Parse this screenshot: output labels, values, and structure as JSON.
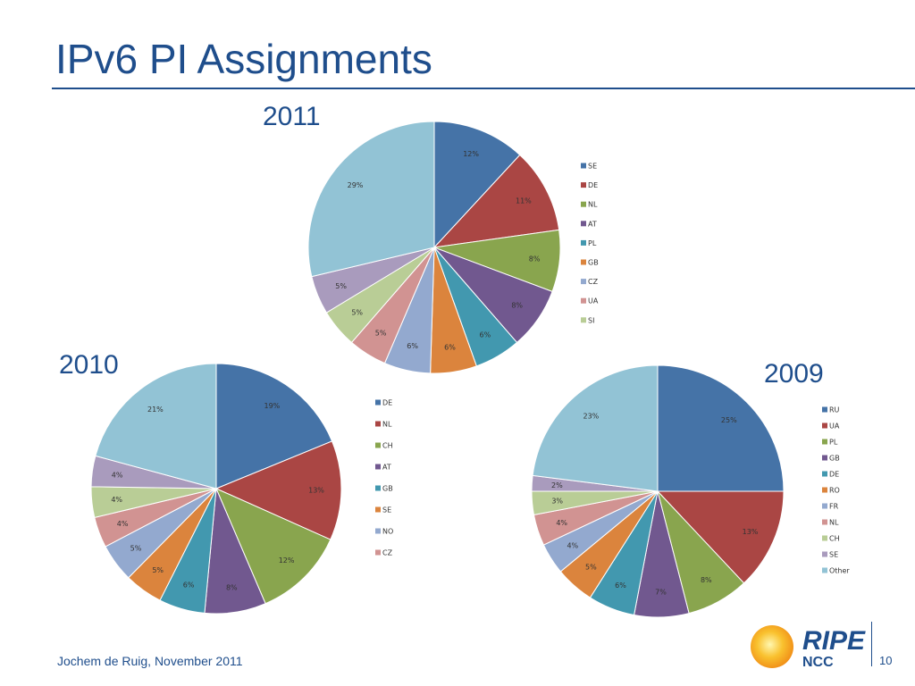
{
  "slide": {
    "title": "IPv6 PI Assignments",
    "footer": "Jochem de Ruig, November 2011",
    "page_number": "10",
    "logo": {
      "ripe": "RIPE",
      "ncc": "NCC"
    }
  },
  "colors": [
    "#4573a7",
    "#aa4644",
    "#89a54e",
    "#71588f",
    "#4298af",
    "#db843d",
    "#93a9cf",
    "#d19392",
    "#b9cd96",
    "#a99bbd",
    "#92c3d5"
  ],
  "chart_data": [
    {
      "type": "pie",
      "title": "2011",
      "categories": [
        "SE",
        "DE",
        "NL",
        "AT",
        "PL",
        "GB",
        "CZ",
        "UA",
        "SI",
        "",
        ""
      ],
      "values": [
        12,
        11,
        8,
        8,
        6,
        6,
        6,
        5,
        5,
        5,
        29
      ],
      "labels": [
        "12%",
        "11%",
        "8%",
        "8%",
        "6%",
        "6%",
        "6%",
        "5%",
        "5%",
        "5%",
        "29%"
      ],
      "legend": [
        "SE",
        "DE",
        "NL",
        "AT",
        "PL",
        "GB",
        "CZ",
        "UA",
        "SI"
      ],
      "legend_position": "right"
    },
    {
      "type": "pie",
      "title": "2010",
      "categories": [
        "DE",
        "NL",
        "CH",
        "AT",
        "GB",
        "SE",
        "NO",
        "CZ",
        "",
        "",
        ""
      ],
      "values": [
        19,
        13,
        12,
        8,
        6,
        5,
        5,
        4,
        4,
        4,
        21
      ],
      "labels": [
        "19%",
        "13%",
        "12%",
        "8%",
        "6%",
        "5%",
        "5%",
        "4%",
        "4%",
        "4%",
        "21%"
      ],
      "legend": [
        "DE",
        "NL",
        "CH",
        "AT",
        "GB",
        "SE",
        "NO",
        "CZ"
      ],
      "legend_position": "right"
    },
    {
      "type": "pie",
      "title": "2009",
      "categories": [
        "RU",
        "UA",
        "PL",
        "GB",
        "DE",
        "RO",
        "FR",
        "NL",
        "CH",
        "SE",
        "Other"
      ],
      "values": [
        25,
        13,
        8,
        7,
        6,
        5,
        4,
        4,
        3,
        2,
        23
      ],
      "labels": [
        "25%",
        "13%",
        "8%",
        "7%",
        "6%",
        "5%",
        "4%",
        "4%",
        "3%",
        "2%",
        "23%"
      ],
      "legend": [
        "RU",
        "UA",
        "PL",
        "GB",
        "DE",
        "RO",
        "FR",
        "NL",
        "CH",
        "SE",
        "Other"
      ],
      "legend_position": "right"
    }
  ]
}
